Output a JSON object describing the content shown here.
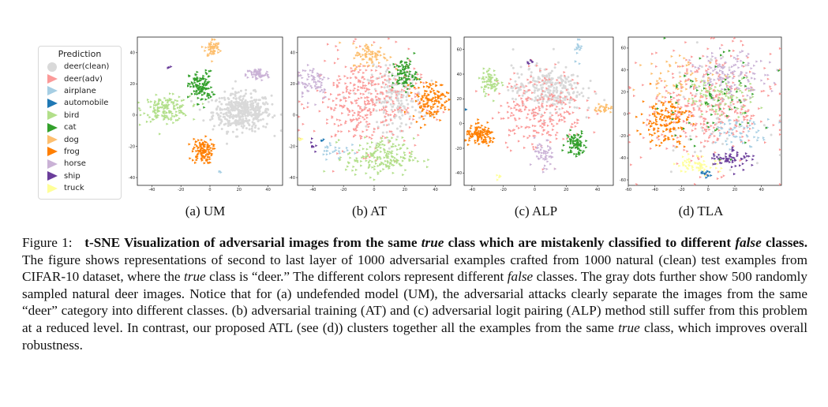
{
  "legend": {
    "title": "Prediction",
    "items": [
      {
        "label": "deer(clean)",
        "color": "#d9d9d9",
        "shape": "circle"
      },
      {
        "label": "deer(adv)",
        "color": "#fb9a99",
        "shape": "triangle"
      },
      {
        "label": "airplane",
        "color": "#a6cee3",
        "shape": "triangle"
      },
      {
        "label": "automobile",
        "color": "#1f78b4",
        "shape": "triangle"
      },
      {
        "label": "bird",
        "color": "#b2df8a",
        "shape": "triangle"
      },
      {
        "label": "cat",
        "color": "#33a02c",
        "shape": "triangle"
      },
      {
        "label": "dog",
        "color": "#fdbf6f",
        "shape": "triangle"
      },
      {
        "label": "frog",
        "color": "#ff7f00",
        "shape": "triangle"
      },
      {
        "label": "horse",
        "color": "#cab2d6",
        "shape": "triangle"
      },
      {
        "label": "ship",
        "color": "#6a3d9a",
        "shape": "triangle"
      },
      {
        "label": "truck",
        "color": "#ffff99",
        "shape": "triangle"
      }
    ]
  },
  "chart_data": [
    {
      "type": "scatter",
      "caption": "(a) UM",
      "xticks": [
        -40,
        -20,
        0,
        20,
        40
      ],
      "yticks": [
        40,
        20,
        0,
        -20,
        -40
      ],
      "xlim": [
        -50,
        50
      ],
      "ylim": [
        -45,
        50
      ],
      "clusters": [
        {
          "cls": "deer(clean)",
          "cx": 22,
          "cy": 2,
          "sx": 10,
          "sy": 6,
          "n": 420
        },
        {
          "cls": "bird",
          "cx": -30,
          "cy": 4,
          "sx": 8,
          "sy": 4,
          "n": 160
        },
        {
          "cls": "cat",
          "cx": -6,
          "cy": 18,
          "sx": 4,
          "sy": 5,
          "n": 120
        },
        {
          "cls": "dog",
          "cx": 2,
          "cy": 43,
          "sx": 2.5,
          "sy": 3,
          "n": 60
        },
        {
          "cls": "horse",
          "cx": 33,
          "cy": 26,
          "sx": 4,
          "sy": 2,
          "n": 60
        },
        {
          "cls": "frog",
          "cx": -5,
          "cy": -23,
          "sx": 3.5,
          "sy": 4,
          "n": 110
        },
        {
          "cls": "ship",
          "cx": -28,
          "cy": 31,
          "sx": 0.5,
          "sy": 0.5,
          "n": 4
        },
        {
          "cls": "airplane",
          "cx": 7,
          "cy": -36,
          "sx": 0.5,
          "sy": 0.5,
          "n": 3
        }
      ]
    },
    {
      "type": "scatter",
      "caption": "(b) AT",
      "xticks": [
        -40,
        -20,
        0,
        20,
        40
      ],
      "yticks": [
        40,
        20,
        0,
        -20,
        -40
      ],
      "xlim": [
        -50,
        50
      ],
      "ylim": [
        -45,
        50
      ],
      "clusters": [
        {
          "cls": "deer(adv)",
          "cx": -5,
          "cy": 8,
          "sx": 17,
          "sy": 15,
          "n": 380
        },
        {
          "cls": "deer(clean)",
          "cx": 14,
          "cy": 10,
          "sx": 9,
          "sy": 10,
          "n": 180
        },
        {
          "cls": "bird",
          "cx": 4,
          "cy": -27,
          "sx": 11,
          "sy": 6,
          "n": 190
        },
        {
          "cls": "frog",
          "cx": 37,
          "cy": 10,
          "sx": 6,
          "sy": 6,
          "n": 130
        },
        {
          "cls": "cat",
          "cx": 20,
          "cy": 26,
          "sx": 4,
          "sy": 5,
          "n": 90
        },
        {
          "cls": "dog",
          "cx": -2,
          "cy": 38,
          "sx": 6,
          "sy": 4,
          "n": 80
        },
        {
          "cls": "horse",
          "cx": -40,
          "cy": 22,
          "sx": 6,
          "sy": 6,
          "n": 70
        },
        {
          "cls": "airplane",
          "cx": -26,
          "cy": -22,
          "sx": 5,
          "sy": 3,
          "n": 25
        },
        {
          "cls": "ship",
          "cx": -40,
          "cy": -20,
          "sx": 1,
          "sy": 2,
          "n": 8
        },
        {
          "cls": "truck",
          "cx": -48,
          "cy": -15,
          "sx": 0.8,
          "sy": 1.5,
          "n": 6
        },
        {
          "cls": "automobile",
          "cx": -34,
          "cy": -16,
          "sx": 1,
          "sy": 1,
          "n": 3
        }
      ]
    },
    {
      "type": "scatter",
      "caption": "(c) ALP",
      "xticks": [
        -40,
        -20,
        0,
        20,
        40
      ],
      "yticks": [
        60,
        40,
        20,
        0,
        -20,
        -40
      ],
      "xlim": [
        -45,
        50
      ],
      "ylim": [
        -50,
        70
      ],
      "clusters": [
        {
          "cls": "deer(clean)",
          "cx": 8,
          "cy": 28,
          "sx": 11,
          "sy": 9,
          "n": 260
        },
        {
          "cls": "deer(adv)",
          "cx": 4,
          "cy": 12,
          "sx": 14,
          "sy": 16,
          "n": 260
        },
        {
          "cls": "frog",
          "cx": -34,
          "cy": -10,
          "sx": 5,
          "sy": 4,
          "n": 120
        },
        {
          "cls": "cat",
          "cx": 26,
          "cy": -16,
          "sx": 3,
          "sy": 5,
          "n": 80
        },
        {
          "cls": "bird",
          "cx": -28,
          "cy": 34,
          "sx": 3,
          "sy": 5,
          "n": 70
        },
        {
          "cls": "horse",
          "cx": 6,
          "cy": -27,
          "sx": 3,
          "sy": 7,
          "n": 50
        },
        {
          "cls": "dog",
          "cx": 44,
          "cy": 12,
          "sx": 3,
          "sy": 2,
          "n": 30
        },
        {
          "cls": "airplane",
          "cx": 28,
          "cy": 62,
          "sx": 1.5,
          "sy": 5,
          "n": 16
        },
        {
          "cls": "ship",
          "cx": -2,
          "cy": 50,
          "sx": 1.2,
          "sy": 1,
          "n": 6
        },
        {
          "cls": "truck",
          "cx": -23,
          "cy": -43,
          "sx": 1,
          "sy": 1,
          "n": 5
        },
        {
          "cls": "automobile",
          "cx": -43,
          "cy": 12,
          "sx": 0.5,
          "sy": 0.5,
          "n": 2
        }
      ]
    },
    {
      "type": "scatter",
      "caption": "(d) TLA",
      "xticks": [
        -60,
        -40,
        -20,
        0,
        20,
        40
      ],
      "yticks": [
        60,
        40,
        20,
        0,
        -20,
        -40,
        -60
      ],
      "xlim": [
        -60,
        55
      ],
      "ylim": [
        -65,
        70
      ],
      "clusters": [
        {
          "cls": "deer(adv)",
          "cx": 0,
          "cy": 5,
          "sx": 24,
          "sy": 26,
          "n": 380
        },
        {
          "cls": "horse",
          "cx": 16,
          "cy": 35,
          "sx": 14,
          "sy": 10,
          "n": 140
        },
        {
          "cls": "frog",
          "cx": -32,
          "cy": -6,
          "sx": 9,
          "sy": 11,
          "n": 140
        },
        {
          "cls": "bird",
          "cx": 8,
          "cy": 16,
          "sx": 14,
          "sy": 9,
          "n": 90
        },
        {
          "cls": "cat",
          "cx": 0,
          "cy": 10,
          "sx": 22,
          "sy": 22,
          "n": 70
        },
        {
          "cls": "dog",
          "cx": -20,
          "cy": 30,
          "sx": 14,
          "sy": 12,
          "n": 60
        },
        {
          "cls": "airplane",
          "cx": 24,
          "cy": -16,
          "sx": 12,
          "sy": 6,
          "n": 60
        },
        {
          "cls": "ship",
          "cx": 18,
          "cy": -40,
          "sx": 8,
          "sy": 5,
          "n": 60
        },
        {
          "cls": "truck",
          "cx": -8,
          "cy": -46,
          "sx": 8,
          "sy": 4,
          "n": 60
        },
        {
          "cls": "automobile",
          "cx": -2,
          "cy": -56,
          "sx": 2,
          "sy": 2,
          "n": 12
        },
        {
          "cls": "deer(clean)",
          "cx": 2,
          "cy": 4,
          "sx": 20,
          "sy": 24,
          "n": 60
        }
      ]
    }
  ],
  "caption": {
    "label": "Figure 1:",
    "bold_text_1": "t-SNE Visualization of adversarial images from the same ",
    "bold_italic_1": "true",
    "bold_text_2": " class which are mistakenly classified to different ",
    "bold_italic_2": "false",
    "bold_text_3": " classes.",
    "body_1": " The figure shows representations of second to last layer of 1000 adversarial examples crafted from 1000 natural (clean) test examples from CIFAR-10 dataset, where the ",
    "italic_1": "true",
    "body_2": " class is “deer.” The different colors represent different ",
    "italic_2": "false",
    "body_3": " classes. The gray dots further show 500 randomly sampled natural deer images. Notice that for (a) undefended model (UM), the adversarial attacks clearly separate the images from the same “deer” category into different classes. (b) adversarial training (AT) and (c) adversarial logit pairing (ALP) method still suffer from this problem at a reduced level. In contrast, our proposed ATL (see (d)) clusters together all the examples from the same ",
    "italic_3": "true",
    "body_4": " class, which improves overall robustness."
  }
}
